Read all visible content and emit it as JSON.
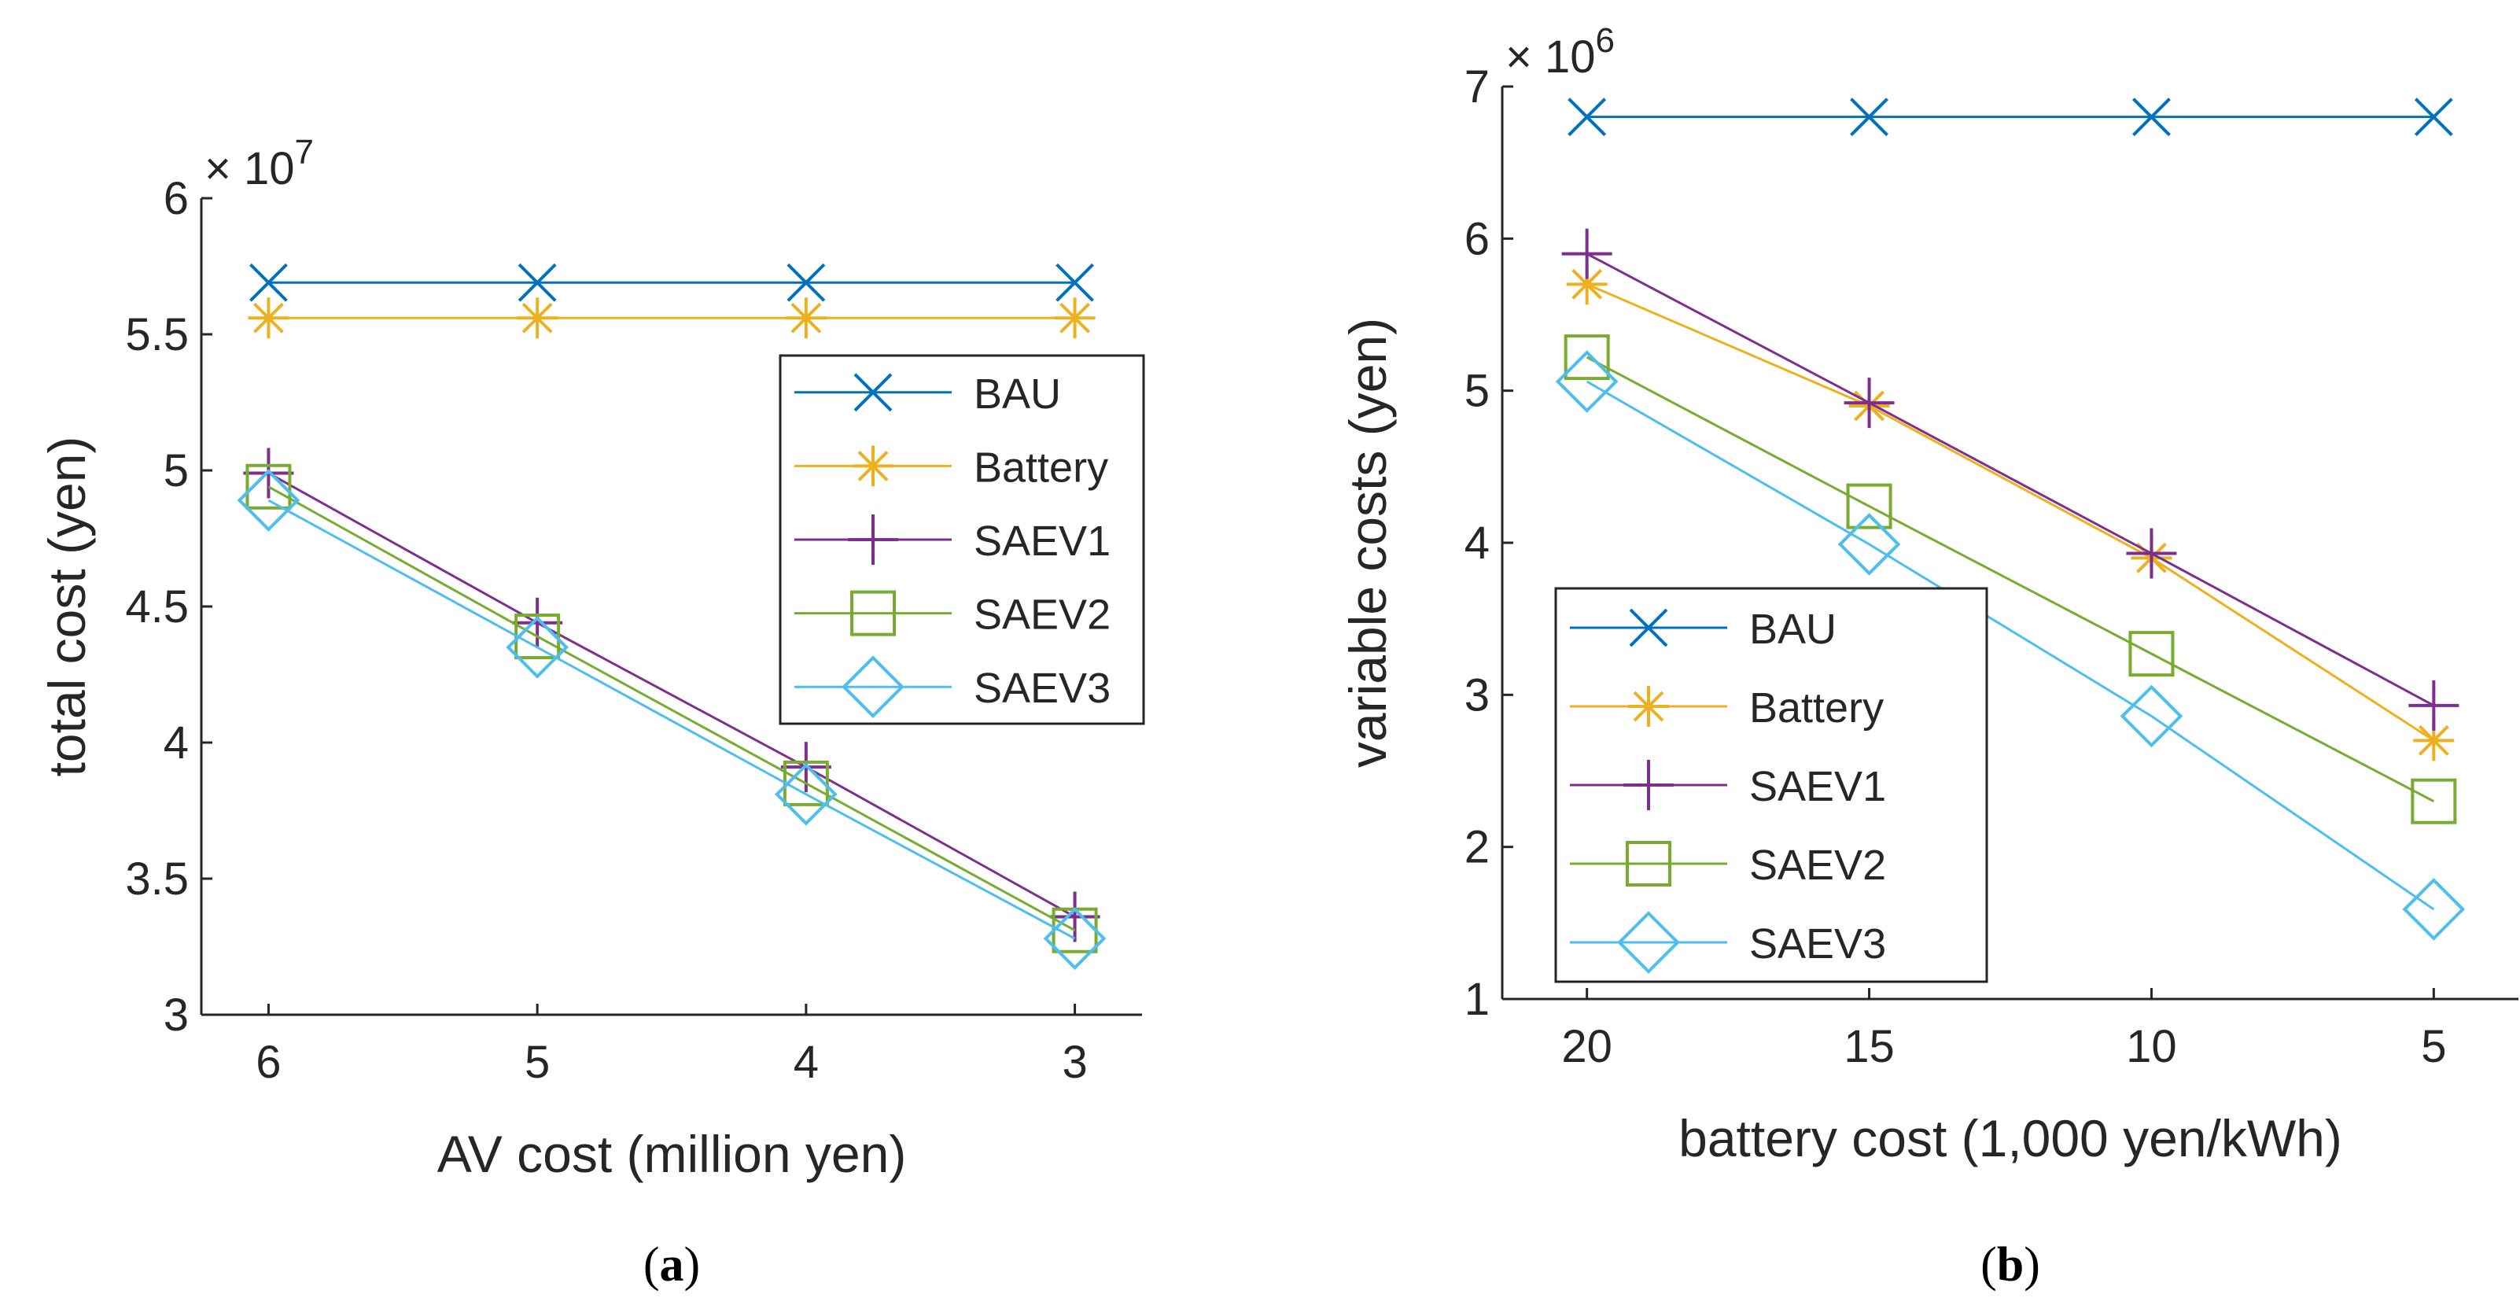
{
  "colors": {
    "BAU": "#0072BD",
    "Battery": "#EDB120",
    "SAEV1": "#7E2F8E",
    "SAEV2": "#77AC30",
    "SAEV3": "#4DBEEE",
    "axis": "#262626"
  },
  "markers": {
    "BAU": "x-mark",
    "Battery": "asterisk-mark",
    "SAEV1": "plus-mark",
    "SAEV2": "square-mark",
    "SAEV3": "diamond-mark"
  },
  "chart_data": [
    {
      "type": "line",
      "caption_prefix": "(",
      "caption_letter": "a",
      "caption_suffix": ")",
      "xlabel": "AV cost (million yen)",
      "ylabel": "total cost (yen)",
      "exponent_base": "× 10",
      "exponent": "7",
      "xticklabels": [
        "6",
        "5",
        "4",
        "3"
      ],
      "yticks": [
        "3",
        "3.5",
        "4",
        "4.5",
        "5",
        "5.5",
        "6"
      ],
      "ytick_values": [
        3,
        3.5,
        4,
        4.5,
        5,
        5.5,
        6
      ],
      "ylim": [
        3,
        6
      ],
      "xlim": [
        6.25,
        2.75
      ],
      "x_reversed": true,
      "legend_position": "top-right",
      "x": [
        6,
        5,
        4,
        3
      ],
      "series": [
        {
          "name": "BAU",
          "values": [
            5.69,
            5.69,
            5.69,
            5.69
          ]
        },
        {
          "name": "Battery",
          "values": [
            5.56,
            5.56,
            5.56,
            5.56
          ]
        },
        {
          "name": "SAEV1",
          "values": [
            4.99,
            4.44,
            3.91,
            3.36
          ]
        },
        {
          "name": "SAEV2",
          "values": [
            4.94,
            4.39,
            3.85,
            3.31
          ]
        },
        {
          "name": "SAEV3",
          "values": [
            4.89,
            4.35,
            3.81,
            3.28
          ]
        }
      ]
    },
    {
      "type": "line",
      "caption_prefix": "(",
      "caption_letter": "b",
      "caption_suffix": ")",
      "xlabel": "battery cost (1,000 yen/kWh)",
      "ylabel": "variable costs (yen)",
      "exponent_base": "× 10",
      "exponent": "6",
      "xticklabels": [
        "20",
        "15",
        "10",
        "5"
      ],
      "yticks": [
        "1",
        "2",
        "3",
        "4",
        "5",
        "6",
        "7"
      ],
      "ytick_values": [
        1,
        2,
        3,
        4,
        5,
        6,
        7
      ],
      "ylim": [
        1,
        7
      ],
      "xlim": [
        21.5,
        3.5
      ],
      "x_reversed": true,
      "legend_position": "bottom-left",
      "x": [
        20,
        15,
        10,
        5
      ],
      "series": [
        {
          "name": "BAU",
          "values": [
            6.8,
            6.8,
            6.8,
            6.8
          ]
        },
        {
          "name": "Battery",
          "values": [
            5.7,
            4.9,
            3.9,
            2.7
          ]
        },
        {
          "name": "SAEV1",
          "values": [
            5.9,
            4.92,
            3.93,
            2.93
          ]
        },
        {
          "name": "SAEV2",
          "values": [
            5.22,
            4.24,
            3.27,
            2.3
          ]
        },
        {
          "name": "SAEV3",
          "values": [
            5.06,
            3.99,
            2.86,
            1.59
          ]
        }
      ]
    }
  ]
}
